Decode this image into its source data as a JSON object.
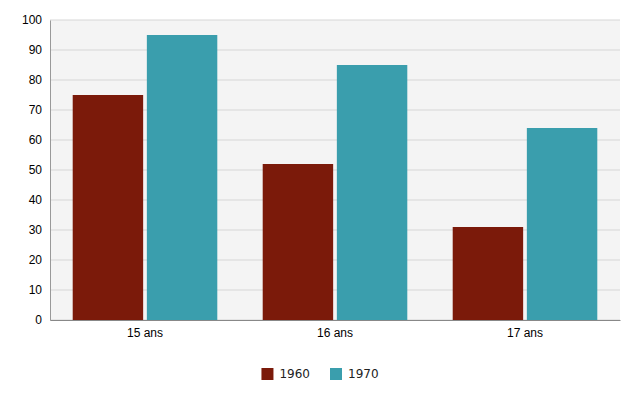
{
  "chart_data": {
    "type": "bar",
    "categories": [
      "15 ans",
      "16 ans",
      "17 ans"
    ],
    "series": [
      {
        "name": "1960",
        "color": "#7B1A0A",
        "values": [
          75,
          52,
          31
        ]
      },
      {
        "name": "1970",
        "color": "#3A9EAD",
        "values": [
          95,
          85,
          64
        ]
      }
    ],
    "ylim": [
      0,
      100
    ],
    "yticks": [
      0,
      10,
      20,
      30,
      40,
      50,
      60,
      70,
      80,
      90,
      100
    ],
    "grid": true,
    "legend": "bottom"
  }
}
